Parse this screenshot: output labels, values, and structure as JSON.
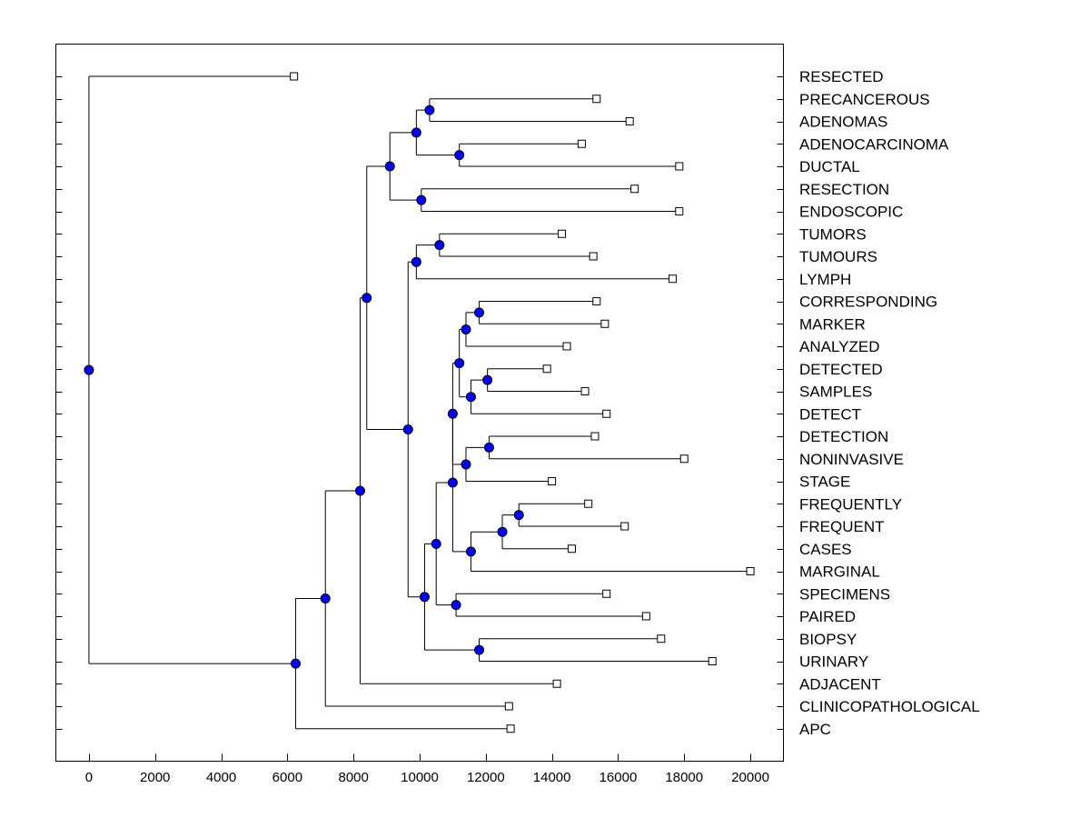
{
  "chart_data": {
    "type": "dendrogram",
    "title": "",
    "xlabel": "",
    "ylabel": "",
    "xlim": [
      -1000,
      21000
    ],
    "x_ticks": [
      0,
      2000,
      4000,
      6000,
      8000,
      10000,
      12000,
      14000,
      16000,
      18000,
      20000
    ],
    "x_tick_labels": [
      "0",
      "2000",
      "4000",
      "6000",
      "8000",
      "10000",
      "12000",
      "14000",
      "16000",
      "18000",
      "20000"
    ],
    "grid": false,
    "legend": null,
    "node_color": "#0000ff",
    "line_color": "#000000",
    "leaf_marker": "open-square",
    "leaves": [
      {
        "label": "RESECTED",
        "x": 6200
      },
      {
        "label": "PRECANCEROUS",
        "x": 15350
      },
      {
        "label": "ADENOMAS",
        "x": 16350
      },
      {
        "label": "ADENOCARCINOMA",
        "x": 14900
      },
      {
        "label": "DUCTAL",
        "x": 17850
      },
      {
        "label": "RESECTION",
        "x": 16500
      },
      {
        "label": "ENDOSCOPIC",
        "x": 17850
      },
      {
        "label": "TUMORS",
        "x": 14300
      },
      {
        "label": "TUMOURS",
        "x": 15250
      },
      {
        "label": "LYMPH",
        "x": 17650
      },
      {
        "label": "CORRESPONDING",
        "x": 15350
      },
      {
        "label": "MARKER",
        "x": 15600
      },
      {
        "label": "ANALYZED",
        "x": 14450
      },
      {
        "label": "DETECTED",
        "x": 13850
      },
      {
        "label": "SAMPLES",
        "x": 15000
      },
      {
        "label": "DETECT",
        "x": 15650
      },
      {
        "label": "DETECTION",
        "x": 15300
      },
      {
        "label": "NONINVASIVE",
        "x": 18000
      },
      {
        "label": "STAGE",
        "x": 14000
      },
      {
        "label": "FREQUENTLY",
        "x": 15100
      },
      {
        "label": "FREQUENT",
        "x": 16200
      },
      {
        "label": "CASES",
        "x": 14600
      },
      {
        "label": "MARGINAL",
        "x": 20000
      },
      {
        "label": "SPECIMENS",
        "x": 15650
      },
      {
        "label": "PAIRED",
        "x": 16850
      },
      {
        "label": "BIOPSY",
        "x": 17300
      },
      {
        "label": "URINARY",
        "x": 18850
      },
      {
        "label": "ADJACENT",
        "x": 14150
      },
      {
        "label": "CLINICOPATHOLOGICAL",
        "x": 12700
      },
      {
        "label": "APC",
        "x": 12750
      }
    ],
    "nodes": [
      {
        "id": "n1",
        "x": 10300,
        "children": [
          "L1",
          "L2"
        ]
      },
      {
        "id": "n2",
        "x": 11200,
        "children": [
          "L3",
          "L4"
        ]
      },
      {
        "id": "n3",
        "x": 9900,
        "children": [
          "n1",
          "n2"
        ]
      },
      {
        "id": "n4",
        "x": 10050,
        "children": [
          "L5",
          "L6"
        ]
      },
      {
        "id": "n5",
        "x": 9100,
        "children": [
          "n3",
          "n4"
        ]
      },
      {
        "id": "n6",
        "x": 10600,
        "children": [
          "L7",
          "L8"
        ]
      },
      {
        "id": "n7",
        "x": 9900,
        "children": [
          "n6",
          "L9"
        ]
      },
      {
        "id": "n8",
        "x": 11800,
        "children": [
          "L10",
          "L11"
        ]
      },
      {
        "id": "n9",
        "x": 11400,
        "children": [
          "n8",
          "L12"
        ]
      },
      {
        "id": "n10",
        "x": 12050,
        "children": [
          "L13",
          "L14"
        ]
      },
      {
        "id": "n11",
        "x": 11550,
        "children": [
          "n10",
          "L15"
        ]
      },
      {
        "id": "n12",
        "x": 11200,
        "children": [
          "n9",
          "n11"
        ]
      },
      {
        "id": "n13",
        "x": 12100,
        "children": [
          "L16",
          "L17"
        ]
      },
      {
        "id": "n14",
        "x": 11400,
        "children": [
          "n13",
          "L18"
        ]
      },
      {
        "id": "n15",
        "x": 11000,
        "children": [
          "n12",
          "n14"
        ]
      },
      {
        "id": "n16",
        "x": 13000,
        "children": [
          "L19",
          "L20"
        ]
      },
      {
        "id": "n17",
        "x": 12500,
        "children": [
          "n16",
          "L21"
        ]
      },
      {
        "id": "n18",
        "x": 11550,
        "children": [
          "n17",
          "L22"
        ]
      },
      {
        "id": "n19",
        "x": 11000,
        "children": [
          "n15",
          "n18"
        ]
      },
      {
        "id": "n20",
        "x": 11100,
        "children": [
          "L23",
          "L24"
        ]
      },
      {
        "id": "n21",
        "x": 10500,
        "children": [
          "n19",
          "n20"
        ]
      },
      {
        "id": "n22",
        "x": 11800,
        "children": [
          "L25",
          "L26"
        ]
      },
      {
        "id": "n23",
        "x": 10150,
        "children": [
          "n21",
          "n22"
        ]
      },
      {
        "id": "n24",
        "x": 9650,
        "children": [
          "n7",
          "n23"
        ]
      },
      {
        "id": "n25",
        "x": 8400,
        "children": [
          "n5",
          "n24"
        ]
      },
      {
        "id": "n26",
        "x": 8200,
        "children": [
          "n25",
          "L27"
        ]
      },
      {
        "id": "n27",
        "x": 7150,
        "children": [
          "n26",
          "L28"
        ]
      },
      {
        "id": "n28",
        "x": 6250,
        "children": [
          "n27",
          "L29"
        ]
      },
      {
        "id": "n29",
        "x": 0,
        "children": [
          "L0",
          "n28"
        ]
      }
    ]
  }
}
